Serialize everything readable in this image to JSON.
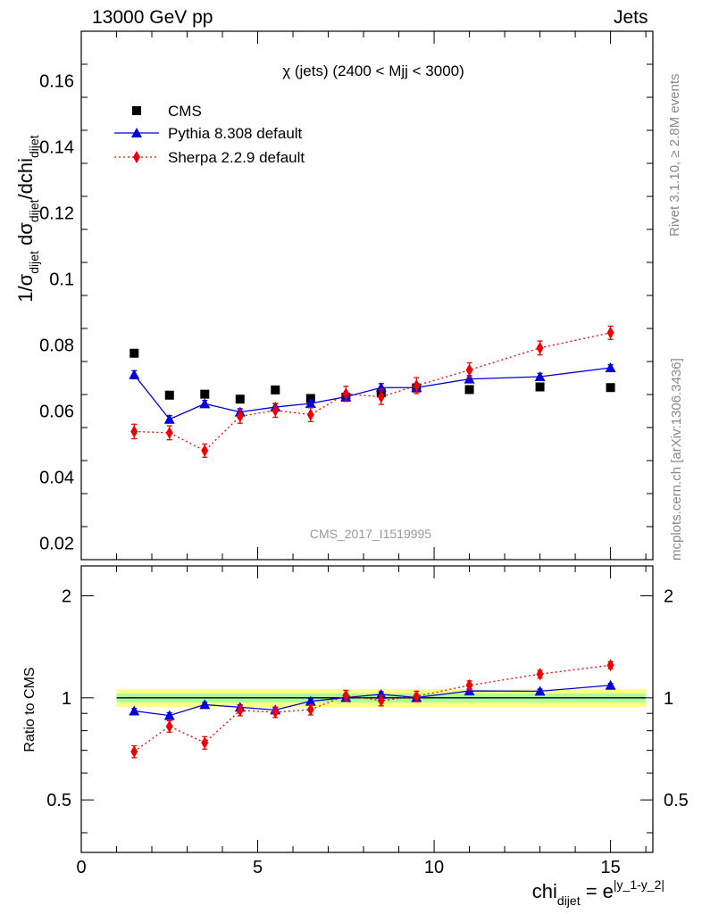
{
  "header": {
    "left_label": "13000 GeV pp",
    "right_label": "Jets"
  },
  "side_labels": {
    "rivet": "Rivet 3.1.10, ≥ 2.8M events",
    "mcplots": "mcplots.cern.ch [arXiv:1306.3436]"
  },
  "colors": {
    "cms": "#000000",
    "pythia": "#0000dd",
    "sherpa": "#ee0000",
    "band_yellow": "#ffff88",
    "band_green": "#aaff99"
  },
  "chart_data": [
    {
      "type": "scatter",
      "panel": "main",
      "title": "χ (jets) (2400 < Mjj < 3000)",
      "watermark": "CMS_2017_I1519995",
      "ylabel_parts": [
        "1/σ",
        "dijet",
        " dσ",
        "dijet",
        "/dchi",
        "dijet"
      ],
      "xlim": [
        0,
        16.2
      ],
      "ylim": [
        0.015,
        0.175
      ],
      "ytick_labels": [
        "0.02",
        "0.04",
        "0.06",
        "0.08",
        "0.1",
        "0.12",
        "0.14",
        "0.16"
      ],
      "ytick_values": [
        0.02,
        0.04,
        0.06,
        0.08,
        0.1,
        0.12,
        0.14,
        0.16
      ],
      "legend_position": "top-left",
      "series": [
        {
          "name": "CMS",
          "style": "marker",
          "x": [
            1.5,
            2.5,
            3.5,
            4.5,
            5.5,
            6.5,
            7.5,
            8.5,
            9.5,
            11,
            13,
            15
          ],
          "y": [
            0.0775,
            0.0648,
            0.0651,
            0.0636,
            0.0664,
            0.0638,
            0.0642,
            0.0655,
            0.067,
            0.0665,
            0.0673,
            0.0671
          ]
        },
        {
          "name": "Pythia 8.308 default",
          "style": "line",
          "x": [
            1.5,
            2.5,
            3.5,
            4.5,
            5.5,
            6.5,
            7.5,
            8.5,
            9.5,
            11,
            13,
            15
          ],
          "y": [
            0.071,
            0.0575,
            0.0622,
            0.0597,
            0.0612,
            0.0623,
            0.0643,
            0.0671,
            0.0671,
            0.0697,
            0.0704,
            0.0731
          ],
          "err": [
            0.0012,
            0.0011,
            0.001,
            0.001,
            0.001,
            0.001,
            0.001,
            0.0012,
            0.0012,
            0.001,
            0.001,
            0.0009
          ]
        },
        {
          "name": "Sherpa 2.2.9 default",
          "style": "dotted",
          "x": [
            1.5,
            2.5,
            3.5,
            4.5,
            5.5,
            6.5,
            7.5,
            8.5,
            9.5,
            11,
            13,
            15
          ],
          "y": [
            0.0538,
            0.0534,
            0.048,
            0.0584,
            0.0602,
            0.0589,
            0.0652,
            0.0643,
            0.0677,
            0.0724,
            0.0791,
            0.0837
          ],
          "err": [
            0.0022,
            0.0021,
            0.002,
            0.0021,
            0.0021,
            0.0021,
            0.0023,
            0.0023,
            0.0024,
            0.0022,
            0.0021,
            0.002
          ]
        }
      ]
    },
    {
      "type": "scatter",
      "panel": "ratio",
      "ylabel": "Ratio to CMS",
      "xlabel_parts": [
        "chi",
        "dijet",
        " = e",
        "|y_1-y_2|"
      ],
      "xlim": [
        0,
        16.2
      ],
      "ylim": [
        0.35,
        2.45
      ],
      "ylog": true,
      "xtick_labels": [
        "0",
        "5",
        "10",
        "15"
      ],
      "xtick_values": [
        0,
        5,
        10,
        15
      ],
      "ytick_labels": [
        "0.5",
        "1",
        "2"
      ],
      "ytick_values": [
        0.5,
        1,
        2
      ],
      "reference_line": 1,
      "band_x": [
        1,
        16
      ],
      "band_yellow": [
        0.94,
        1.06
      ],
      "band_green": [
        0.97,
        1.03
      ],
      "series": [
        {
          "name": "Pythia 8.308 default",
          "style": "line",
          "x": [
            1.5,
            2.5,
            3.5,
            4.5,
            5.5,
            6.5,
            7.5,
            8.5,
            9.5,
            11,
            13,
            15
          ],
          "y": [
            0.915,
            0.887,
            0.955,
            0.938,
            0.921,
            0.977,
            1.002,
            1.024,
            1.002,
            1.048,
            1.046,
            1.089
          ],
          "err": [
            0.016,
            0.017,
            0.015,
            0.016,
            0.015,
            0.016,
            0.016,
            0.018,
            0.018,
            0.015,
            0.015,
            0.014
          ]
        },
        {
          "name": "Sherpa 2.2.9 default",
          "style": "dotted",
          "x": [
            1.5,
            2.5,
            3.5,
            4.5,
            5.5,
            6.5,
            7.5,
            8.5,
            9.5,
            11,
            13,
            15
          ],
          "y": [
            0.694,
            0.824,
            0.737,
            0.918,
            0.907,
            0.923,
            1.016,
            0.982,
            1.01,
            1.089,
            1.175,
            1.248
          ],
          "err": [
            0.028,
            0.032,
            0.031,
            0.033,
            0.032,
            0.033,
            0.036,
            0.035,
            0.036,
            0.033,
            0.031,
            0.03
          ]
        }
      ]
    }
  ]
}
